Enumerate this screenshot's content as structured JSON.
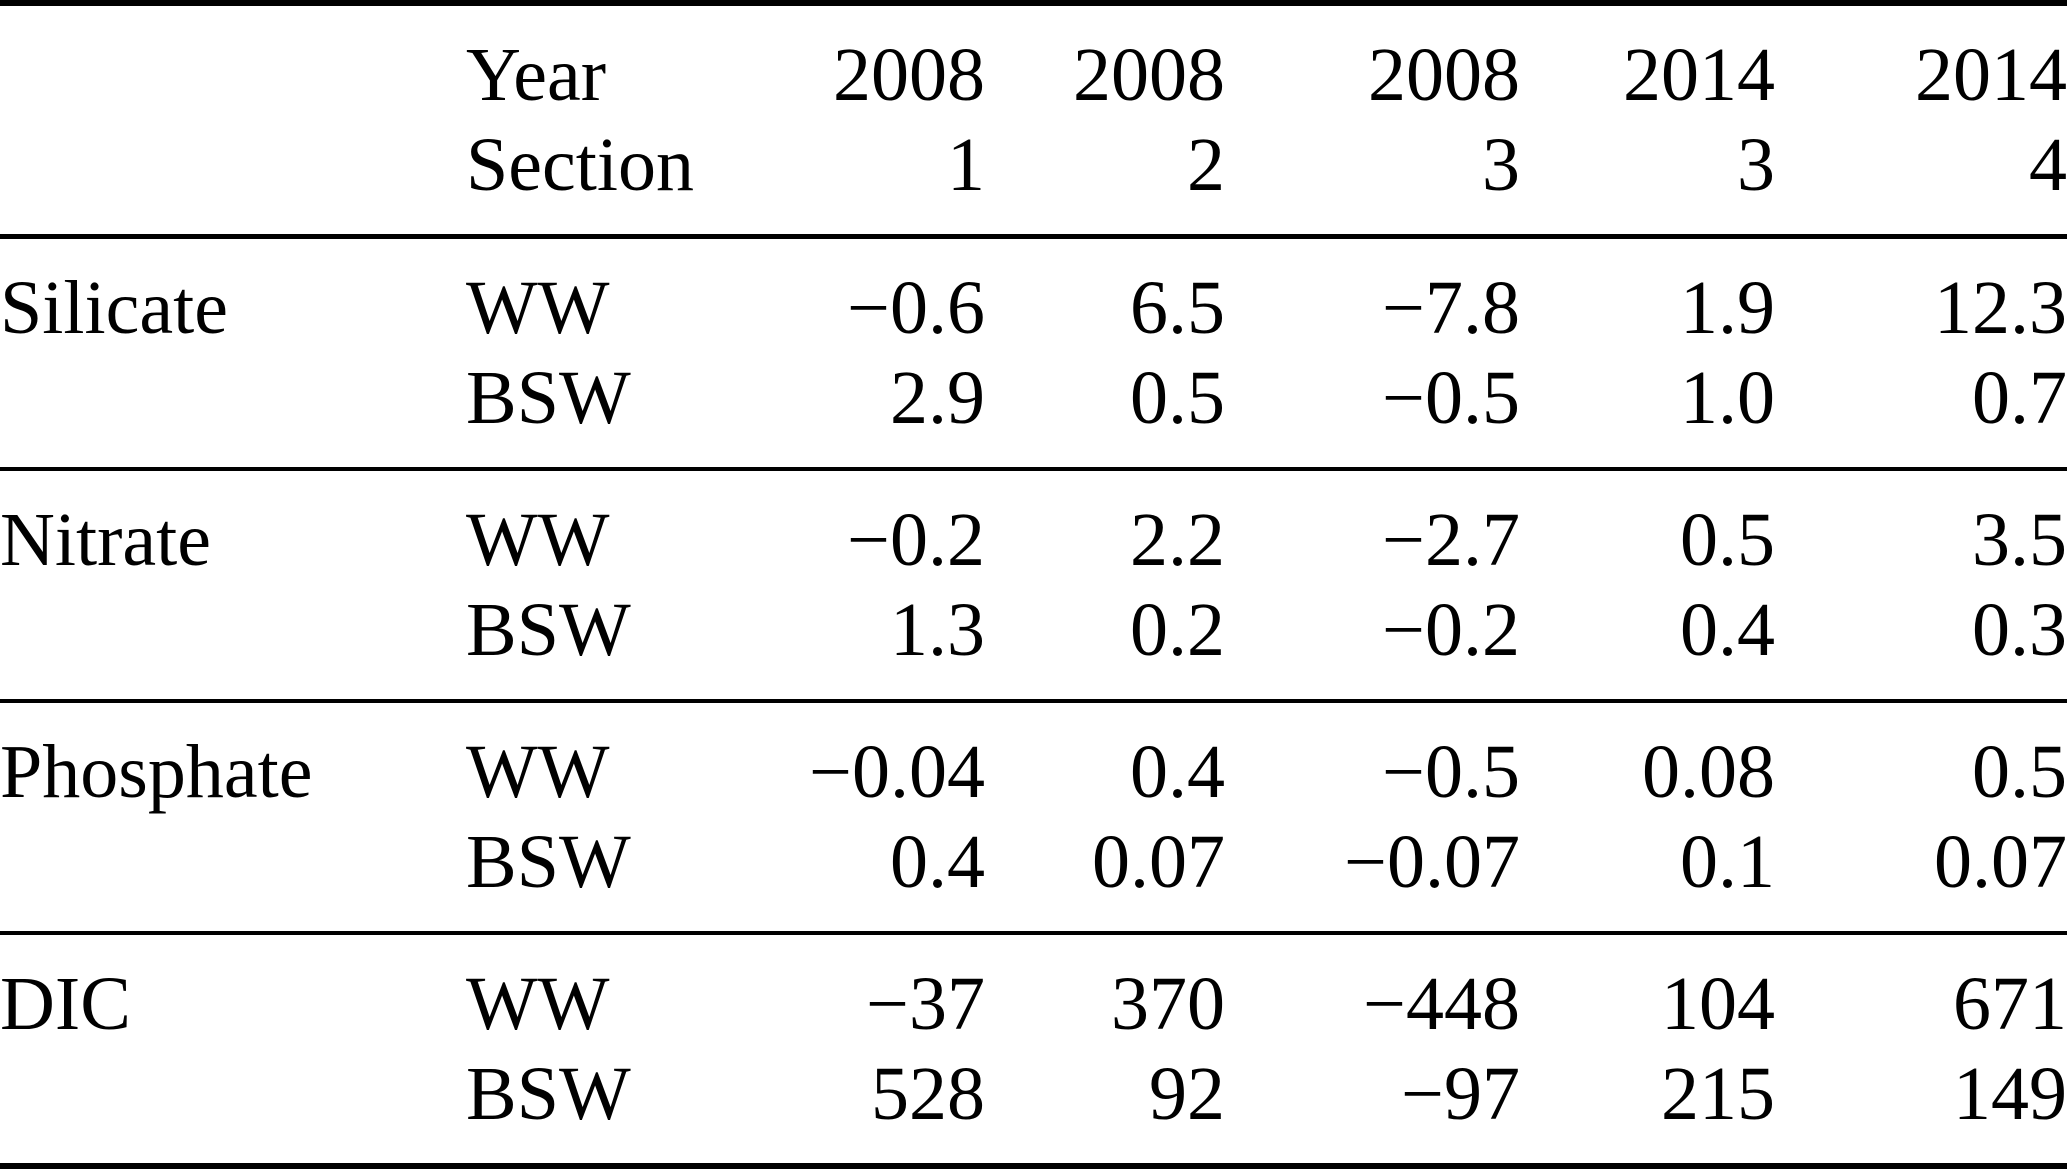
{
  "table": {
    "header": {
      "year_label": "Year",
      "section_label": "Section",
      "years": [
        "2008",
        "2008",
        "2008",
        "2014",
        "2014"
      ],
      "sections": [
        "1",
        "2",
        "3",
        "3",
        "4"
      ]
    },
    "water_mass_labels": {
      "ww": "WW",
      "bsw": "BSW"
    },
    "rows": [
      {
        "name": "Silicate",
        "ww": [
          "−0.6",
          "6.5",
          "−7.8",
          "1.9",
          "12.3"
        ],
        "bsw": [
          "2.9",
          "0.5",
          "−0.5",
          "1.0",
          "0.7"
        ]
      },
      {
        "name": "Nitrate",
        "ww": [
          "−0.2",
          "2.2",
          "−2.7",
          "0.5",
          "3.5"
        ],
        "bsw": [
          "1.3",
          "0.2",
          "−0.2",
          "0.4",
          "0.3"
        ]
      },
      {
        "name": "Phosphate",
        "ww": [
          "−0.04",
          "0.4",
          "−0.5",
          "0.08",
          "0.5"
        ],
        "bsw": [
          "0.4",
          "0.07",
          "−0.07",
          "0.1",
          "0.07"
        ]
      },
      {
        "name": "DIC",
        "ww": [
          "−37",
          "370",
          "−448",
          "104",
          "671"
        ],
        "bsw": [
          "528",
          "92",
          "−97",
          "215",
          "149"
        ]
      }
    ]
  },
  "chart_data": {
    "type": "table",
    "title": "",
    "column_groups": {
      "Year": [
        "2008",
        "2008",
        "2008",
        "2014",
        "2014"
      ],
      "Section": [
        "1",
        "2",
        "3",
        "3",
        "4"
      ]
    },
    "row_labels": [
      "Silicate WW",
      "Silicate BSW",
      "Nitrate WW",
      "Nitrate BSW",
      "Phosphate WW",
      "Phosphate BSW",
      "DIC WW",
      "DIC BSW"
    ],
    "values": [
      [
        -0.6,
        6.5,
        -7.8,
        1.9,
        12.3
      ],
      [
        2.9,
        0.5,
        -0.5,
        1.0,
        0.7
      ],
      [
        -0.2,
        2.2,
        -2.7,
        0.5,
        3.5
      ],
      [
        1.3,
        0.2,
        -0.2,
        0.4,
        0.3
      ],
      [
        -0.04,
        0.4,
        -0.5,
        0.08,
        0.5
      ],
      [
        0.4,
        0.07,
        -0.07,
        0.1,
        0.07
      ],
      [
        -37,
        370,
        -448,
        104,
        671
      ],
      [
        528,
        92,
        -97,
        215,
        149
      ]
    ]
  }
}
